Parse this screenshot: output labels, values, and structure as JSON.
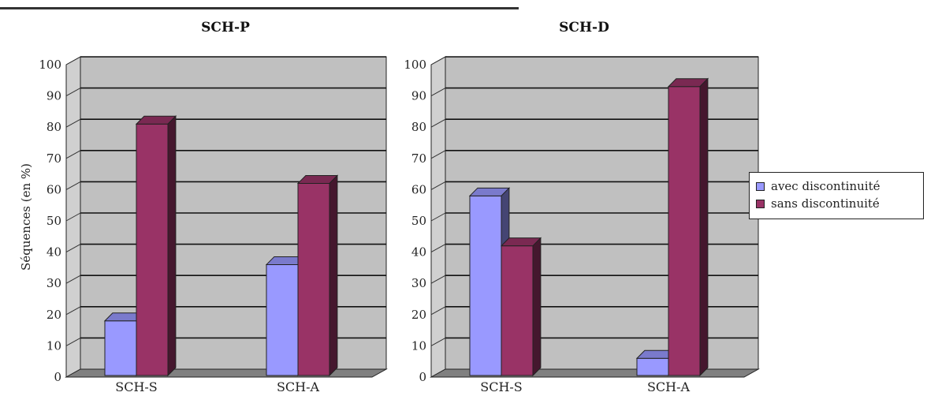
{
  "colors": {
    "avec": "#9999ff",
    "sans": "#993366",
    "wall": "#c0c0c0",
    "floor": "#808080"
  },
  "legend": {
    "items": [
      {
        "label": "avec discontinuité",
        "color": "#9999ff"
      },
      {
        "label": "sans discontinuité",
        "color": "#993366"
      }
    ]
  },
  "chart_data": [
    {
      "type": "bar",
      "title": "SCH-P",
      "ylabel": "Séquences (en %)",
      "categories": [
        "SCH-S",
        "SCH-A"
      ],
      "ylim": [
        0,
        100
      ],
      "yticks": [
        "0",
        "10",
        "20",
        "30",
        "40",
        "50",
        "60",
        "70",
        "80",
        "90",
        "100"
      ],
      "series": [
        {
          "name": "avec discontinuité",
          "values": [
            18,
            36
          ]
        },
        {
          "name": "sans discontinuité",
          "values": [
            81,
            62
          ]
        }
      ],
      "grid": true
    },
    {
      "type": "bar",
      "title": "SCH-D",
      "ylabel": "",
      "categories": [
        "SCH-S",
        "SCH-A"
      ],
      "ylim": [
        0,
        100
      ],
      "yticks": [
        "0",
        "10",
        "20",
        "30",
        "40",
        "50",
        "60",
        "70",
        "80",
        "90",
        "100"
      ],
      "series": [
        {
          "name": "avec discontinuité",
          "values": [
            58,
            6
          ]
        },
        {
          "name": "sans discontinuité",
          "values": [
            42,
            93
          ]
        }
      ],
      "grid": true
    }
  ]
}
